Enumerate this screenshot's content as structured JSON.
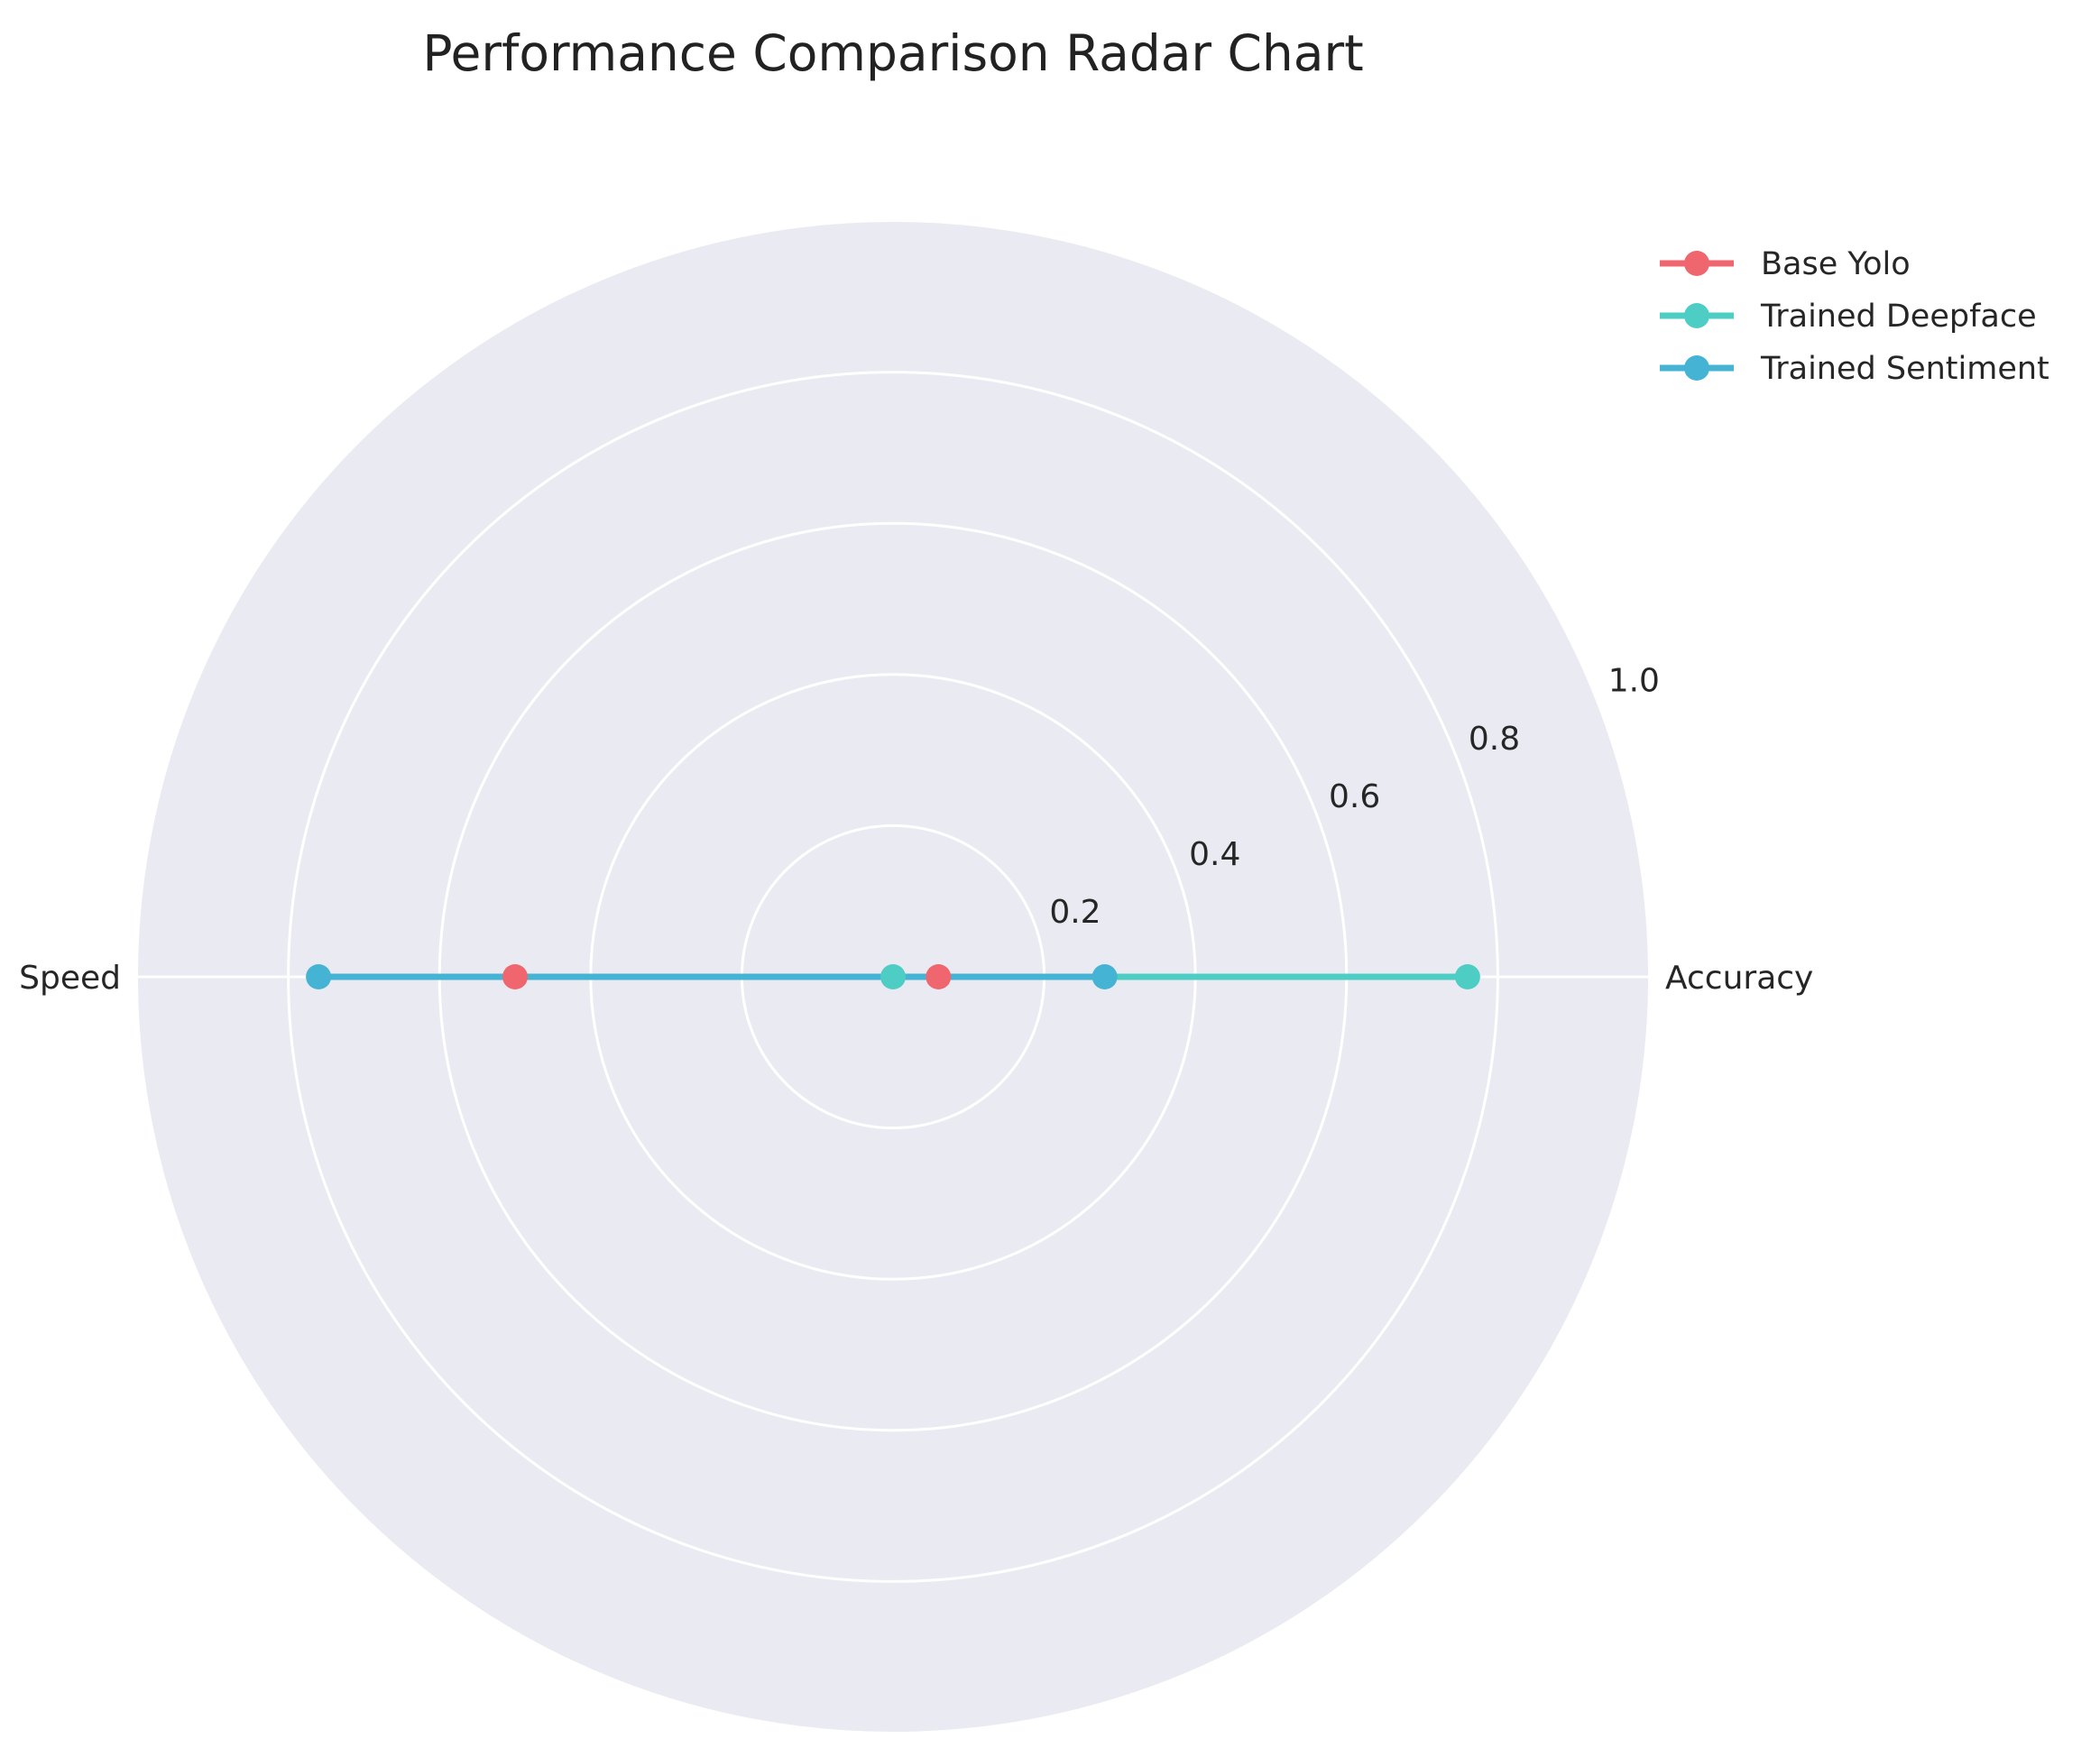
{
  "chart_data": {
    "type": "radar",
    "title": "Performance Comparison Radar Chart",
    "axes": [
      "Accuracy",
      "Speed"
    ],
    "rlim": [
      0,
      1.0
    ],
    "rticks": [
      0.2,
      0.4,
      0.6,
      0.8,
      1.0
    ],
    "rtick_labels": [
      "0.2",
      "0.4",
      "0.6",
      "0.8",
      "1.0"
    ],
    "grid": true,
    "legend_position": "top-right",
    "series": [
      {
        "name": "Base Yolo",
        "color": "#f0666e",
        "values": [
          0.06,
          0.5
        ]
      },
      {
        "name": "Trained Deepface",
        "color": "#4ecdc4",
        "values": [
          0.76,
          0.0
        ]
      },
      {
        "name": "Trained Sentiment",
        "color": "#45b3d3",
        "values": [
          0.28,
          0.76
        ]
      }
    ],
    "background_color": "#eaeaf2",
    "grid_color": "#ffffff"
  }
}
